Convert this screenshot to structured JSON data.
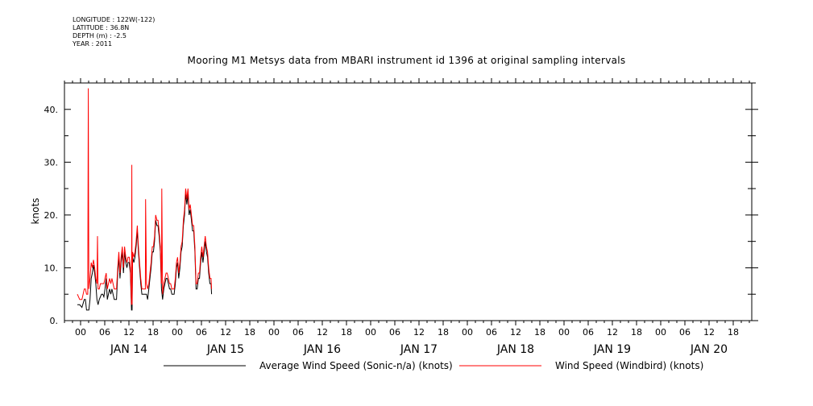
{
  "metadata": {
    "longitude": "LONGITUDE : 122W(-122)",
    "latitude": "LATITUDE : 36.8N",
    "depth": "DEPTH (m) : -2.5",
    "year": "YEAR : 2011"
  },
  "chart_data": {
    "type": "line",
    "title": "Mooring M1 Metsys data from MBARI instrument id 1396 at original sampling intervals",
    "ylabel": "knots",
    "xlabel": "",
    "ylim": [
      0,
      45
    ],
    "yticks": [
      "0.",
      "10.",
      "20.",
      "30.",
      "40."
    ],
    "hour_ticks": [
      "00",
      "06",
      "12",
      "18",
      "00",
      "06",
      "12",
      "18",
      "00",
      "06",
      "12",
      "18",
      "00",
      "06",
      "12",
      "18",
      "00",
      "06",
      "12",
      "18",
      "00",
      "06",
      "12",
      "18",
      "00",
      "06",
      "12",
      "18"
    ],
    "day_labels": [
      "JAN 14",
      "JAN 15",
      "JAN 16",
      "JAN 17",
      "JAN 18",
      "JAN 19",
      "JAN 20"
    ],
    "x_hours_range": [
      0,
      200
    ],
    "series": [
      {
        "name": "Average Wind Speed (Sonic-n/a) (knots)",
        "color": "#000000",
        "points": [
          [
            0,
            3
          ],
          [
            4,
            3
          ],
          [
            8,
            2.5
          ],
          [
            12,
            4
          ],
          [
            14,
            4
          ],
          [
            16,
            2
          ],
          [
            20,
            2
          ],
          [
            22,
            4
          ],
          [
            24,
            8
          ],
          [
            26,
            9
          ],
          [
            28,
            10.5
          ],
          [
            30,
            9
          ],
          [
            32,
            7
          ],
          [
            34,
            4
          ],
          [
            36,
            3
          ],
          [
            38,
            4
          ],
          [
            40,
            4.5
          ],
          [
            42,
            5
          ],
          [
            44,
            5
          ],
          [
            46,
            4.5
          ],
          [
            48,
            6
          ],
          [
            50,
            8
          ],
          [
            52,
            4
          ],
          [
            54,
            5
          ],
          [
            56,
            6
          ],
          [
            58,
            5
          ],
          [
            60,
            6
          ],
          [
            62,
            5
          ],
          [
            64,
            4
          ],
          [
            66,
            4
          ],
          [
            68,
            4
          ],
          [
            70,
            9
          ],
          [
            72,
            12
          ],
          [
            74,
            8
          ],
          [
            76,
            11
          ],
          [
            78,
            13
          ],
          [
            80,
            9
          ],
          [
            82,
            13
          ],
          [
            84,
            11
          ],
          [
            86,
            10
          ],
          [
            88,
            11
          ],
          [
            90,
            11
          ],
          [
            92,
            9
          ],
          [
            94,
            2
          ],
          [
            95,
            2
          ],
          [
            96,
            12
          ],
          [
            98,
            11
          ],
          [
            100,
            12
          ],
          [
            102,
            14
          ],
          [
            104,
            17
          ],
          [
            106,
            13
          ],
          [
            108,
            10
          ],
          [
            110,
            7
          ],
          [
            112,
            5
          ],
          [
            114,
            5
          ],
          [
            116,
            5
          ],
          [
            118,
            5
          ],
          [
            120,
            5
          ],
          [
            122,
            4
          ],
          [
            124,
            6
          ],
          [
            126,
            8
          ],
          [
            128,
            10
          ],
          [
            130,
            13
          ],
          [
            132,
            13
          ],
          [
            134,
            15
          ],
          [
            136,
            19
          ],
          [
            138,
            18
          ],
          [
            140,
            18
          ],
          [
            142,
            16
          ],
          [
            144,
            13
          ],
          [
            146,
            6
          ],
          [
            148,
            4
          ],
          [
            150,
            6
          ],
          [
            152,
            7
          ],
          [
            154,
            8
          ],
          [
            156,
            8
          ],
          [
            158,
            7
          ],
          [
            160,
            6
          ],
          [
            162,
            6
          ],
          [
            164,
            5
          ],
          [
            166,
            5
          ],
          [
            168,
            5
          ],
          [
            170,
            7
          ],
          [
            172,
            10
          ],
          [
            174,
            11
          ],
          [
            176,
            8
          ],
          [
            178,
            10
          ],
          [
            180,
            13
          ],
          [
            182,
            14
          ],
          [
            184,
            18
          ],
          [
            186,
            20
          ],
          [
            188,
            24
          ],
          [
            190,
            22
          ],
          [
            192,
            24
          ],
          [
            194,
            20
          ],
          [
            196,
            21
          ],
          [
            198,
            19
          ],
          [
            200,
            17
          ],
          [
            202,
            17
          ],
          [
            204,
            13
          ],
          [
            206,
            6
          ],
          [
            208,
            6
          ],
          [
            210,
            8
          ],
          [
            212,
            8
          ],
          [
            214,
            11
          ],
          [
            216,
            13
          ],
          [
            218,
            11
          ],
          [
            220,
            13
          ],
          [
            222,
            15
          ],
          [
            224,
            13
          ],
          [
            226,
            12
          ],
          [
            228,
            9
          ],
          [
            230,
            7
          ],
          [
            232,
            7
          ],
          [
            233,
            5
          ]
        ]
      },
      {
        "name": "Wind Speed (Windbird) (knots)",
        "color": "#ff0000",
        "points": [
          [
            0,
            5
          ],
          [
            4,
            4
          ],
          [
            8,
            4
          ],
          [
            12,
            6
          ],
          [
            14,
            6
          ],
          [
            16,
            5
          ],
          [
            18,
            5
          ],
          [
            19,
            44
          ],
          [
            19.5,
            24
          ],
          [
            20,
            6
          ],
          [
            22,
            8
          ],
          [
            24,
            11
          ],
          [
            26,
            10
          ],
          [
            28,
            11.5
          ],
          [
            30,
            10
          ],
          [
            32,
            8
          ],
          [
            34,
            7
          ],
          [
            35,
            16
          ],
          [
            36,
            6
          ],
          [
            38,
            6
          ],
          [
            40,
            7
          ],
          [
            42,
            7
          ],
          [
            44,
            7
          ],
          [
            46,
            7
          ],
          [
            48,
            8
          ],
          [
            50,
            9
          ],
          [
            52,
            6
          ],
          [
            54,
            7
          ],
          [
            56,
            8
          ],
          [
            58,
            7
          ],
          [
            60,
            8
          ],
          [
            62,
            7
          ],
          [
            64,
            6
          ],
          [
            66,
            6
          ],
          [
            68,
            6
          ],
          [
            70,
            10
          ],
          [
            72,
            13
          ],
          [
            74,
            9
          ],
          [
            76,
            12
          ],
          [
            78,
            14
          ],
          [
            80,
            10
          ],
          [
            82,
            14
          ],
          [
            84,
            12
          ],
          [
            86,
            11
          ],
          [
            88,
            12
          ],
          [
            90,
            12
          ],
          [
            92,
            10
          ],
          [
            94,
            3
          ],
          [
            94.5,
            29.5
          ],
          [
            95,
            3
          ],
          [
            96,
            13
          ],
          [
            98,
            12
          ],
          [
            100,
            13
          ],
          [
            102,
            15
          ],
          [
            104,
            18
          ],
          [
            106,
            14
          ],
          [
            108,
            11
          ],
          [
            110,
            8
          ],
          [
            112,
            6
          ],
          [
            114,
            6
          ],
          [
            116,
            6
          ],
          [
            118,
            6
          ],
          [
            118.5,
            23
          ],
          [
            120,
            7
          ],
          [
            122,
            6
          ],
          [
            124,
            7
          ],
          [
            126,
            9
          ],
          [
            128,
            11
          ],
          [
            130,
            14
          ],
          [
            132,
            14
          ],
          [
            134,
            16
          ],
          [
            136,
            20
          ],
          [
            138,
            19
          ],
          [
            140,
            19
          ],
          [
            142,
            17
          ],
          [
            144,
            14
          ],
          [
            146,
            7
          ],
          [
            146.5,
            25
          ],
          [
            148,
            5
          ],
          [
            150,
            7
          ],
          [
            152,
            8
          ],
          [
            154,
            9
          ],
          [
            156,
            9
          ],
          [
            158,
            8
          ],
          [
            160,
            7
          ],
          [
            162,
            7
          ],
          [
            164,
            6
          ],
          [
            166,
            6
          ],
          [
            168,
            6
          ],
          [
            170,
            8
          ],
          [
            172,
            11
          ],
          [
            174,
            12
          ],
          [
            176,
            9
          ],
          [
            178,
            11
          ],
          [
            180,
            14
          ],
          [
            182,
            15
          ],
          [
            184,
            19
          ],
          [
            186,
            21
          ],
          [
            188,
            25
          ],
          [
            190,
            23
          ],
          [
            192,
            25
          ],
          [
            194,
            21
          ],
          [
            196,
            22
          ],
          [
            198,
            20
          ],
          [
            200,
            18
          ],
          [
            202,
            18
          ],
          [
            204,
            14
          ],
          [
            206,
            7
          ],
          [
            208,
            7
          ],
          [
            210,
            9
          ],
          [
            212,
            9
          ],
          [
            214,
            12
          ],
          [
            216,
            14
          ],
          [
            218,
            12
          ],
          [
            220,
            14
          ],
          [
            222,
            16
          ],
          [
            224,
            14
          ],
          [
            226,
            13
          ],
          [
            228,
            10
          ],
          [
            230,
            8
          ],
          [
            232,
            8
          ],
          [
            233,
            6
          ]
        ]
      }
    ],
    "legend_position": "bottom"
  }
}
